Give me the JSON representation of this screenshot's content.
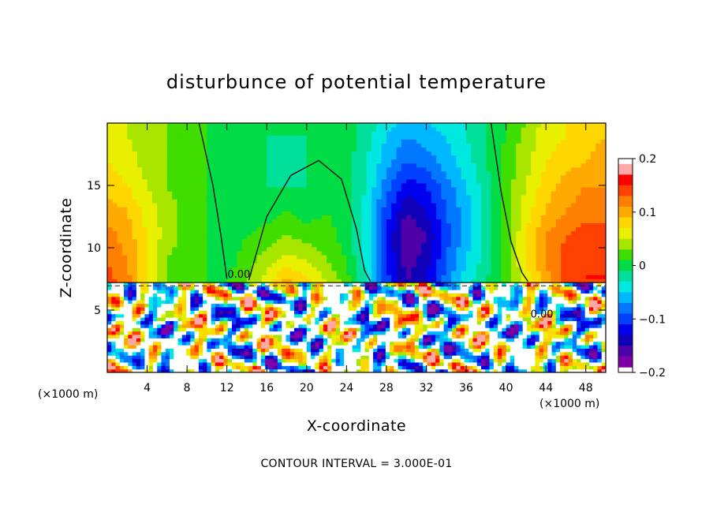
{
  "chart_data": {
    "type": "heatmap",
    "title": "disturbunce of potential temperature",
    "xlabel": "X-coordinate",
    "ylabel": "Z-coordinate",
    "x_unit_left": "(×1000 m)",
    "x_unit_right": "(×1000 m)",
    "xlim": [
      0,
      50
    ],
    "ylim": [
      0,
      20
    ],
    "x_ticks": [
      4,
      8,
      12,
      16,
      20,
      24,
      28,
      32,
      36,
      40,
      44,
      48
    ],
    "x_tick_labels": [
      "4",
      "8",
      "12",
      "16",
      "20",
      "24",
      "28",
      "32",
      "36",
      "40",
      "44",
      "48"
    ],
    "y_ticks": [
      5,
      10,
      15
    ],
    "y_tick_labels": [
      "5",
      "10",
      "15"
    ],
    "colorbar": {
      "range": [
        -0.2,
        0.2
      ],
      "ticks": [
        0.2,
        0.1,
        0,
        -0.1,
        -0.2
      ],
      "tick_labels": [
        "0.2",
        "0.1",
        "0",
        "−0.1",
        "−0.2"
      ],
      "levels": [
        {
          "value": 0.18,
          "color": "#ffa8a8"
        },
        {
          "value": 0.16,
          "color": "#ff0000"
        },
        {
          "value": 0.14,
          "color": "#ff4000"
        },
        {
          "value": 0.12,
          "color": "#ff8000"
        },
        {
          "value": 0.1,
          "color": "#ffaa00"
        },
        {
          "value": 0.08,
          "color": "#ffd700"
        },
        {
          "value": 0.06,
          "color": "#e8f000"
        },
        {
          "value": 0.04,
          "color": "#a8e600"
        },
        {
          "value": 0.02,
          "color": "#40dd00"
        },
        {
          "value": 0.0,
          "color": "#00dc46"
        },
        {
          "value": -0.02,
          "color": "#00e09a"
        },
        {
          "value": -0.04,
          "color": "#00e8e0"
        },
        {
          "value": -0.06,
          "color": "#00b8ff"
        },
        {
          "value": -0.08,
          "color": "#0078ff"
        },
        {
          "value": -0.1,
          "color": "#0040ff"
        },
        {
          "value": -0.12,
          "color": "#0000ee"
        },
        {
          "value": -0.14,
          "color": "#1000b8"
        },
        {
          "value": -0.16,
          "color": "#5000a8"
        },
        {
          "value": -0.18,
          "color": "#8000a8"
        }
      ]
    },
    "contour_labels": [
      "0.00",
      "0.00"
    ],
    "contour_interval_note": "CONTOUR INTERVAL = 3.000E-01",
    "upper_layer_base_z": 7.2,
    "upper_layer_pattern": {
      "columns_x": [
        0,
        2,
        4,
        6,
        8,
        10,
        12,
        14,
        16,
        18,
        20,
        22,
        24,
        26,
        28,
        30,
        32,
        34,
        36,
        38,
        40,
        42,
        44,
        46,
        48,
        50
      ],
      "rows_z": [
        7.2,
        9,
        11,
        13,
        15,
        17,
        19,
        20
      ],
      "values": [
        [
          0.14,
          0.12,
          0.07,
          0.03,
          0.02,
          0.01,
          0.01,
          0.03,
          0.06,
          0.1,
          0.08,
          0.05,
          0.02,
          -0.03,
          -0.1,
          -0.15,
          -0.13,
          -0.08,
          -0.04,
          -0.01,
          0.02,
          0.06,
          0.1,
          0.14,
          0.15,
          0.15
        ],
        [
          0.13,
          0.11,
          0.07,
          0.03,
          0.02,
          0.01,
          0.0,
          0.02,
          0.04,
          0.06,
          0.05,
          0.03,
          0.01,
          -0.04,
          -0.11,
          -0.16,
          -0.14,
          -0.09,
          -0.05,
          -0.02,
          0.02,
          0.07,
          0.11,
          0.14,
          0.15,
          0.15
        ],
        [
          0.12,
          0.1,
          0.07,
          0.04,
          0.02,
          0.01,
          0.0,
          0.01,
          0.02,
          0.03,
          0.02,
          0.02,
          0.0,
          -0.04,
          -0.11,
          -0.17,
          -0.15,
          -0.1,
          -0.06,
          -0.02,
          0.02,
          0.07,
          0.11,
          0.13,
          0.14,
          0.14
        ],
        [
          0.1,
          0.09,
          0.06,
          0.04,
          0.02,
          0.01,
          0.0,
          -0.01,
          0.0,
          0.01,
          0.0,
          0.01,
          0.0,
          -0.04,
          -0.1,
          -0.15,
          -0.13,
          -0.09,
          -0.06,
          -0.02,
          0.02,
          0.06,
          0.09,
          0.11,
          0.12,
          0.12
        ],
        [
          0.08,
          0.07,
          0.05,
          0.03,
          0.02,
          0.01,
          0.0,
          -0.01,
          -0.01,
          -0.01,
          -0.01,
          0.0,
          0.0,
          -0.03,
          -0.08,
          -0.12,
          -0.11,
          -0.08,
          -0.05,
          -0.02,
          0.02,
          0.05,
          0.08,
          0.1,
          0.11,
          0.11
        ],
        [
          0.07,
          0.06,
          0.04,
          0.03,
          0.02,
          0.01,
          0.0,
          -0.01,
          -0.01,
          -0.02,
          -0.01,
          0.0,
          0.0,
          -0.03,
          -0.06,
          -0.09,
          -0.08,
          -0.06,
          -0.04,
          -0.01,
          0.02,
          0.04,
          0.07,
          0.08,
          0.09,
          0.1
        ],
        [
          0.06,
          0.05,
          0.04,
          0.03,
          0.02,
          0.01,
          0.0,
          -0.01,
          -0.01,
          -0.01,
          -0.01,
          0.0,
          0.0,
          -0.02,
          -0.05,
          -0.07,
          -0.06,
          -0.05,
          -0.03,
          -0.01,
          0.01,
          0.04,
          0.06,
          0.07,
          0.08,
          0.09
        ],
        [
          0.06,
          0.05,
          0.04,
          0.03,
          0.02,
          0.01,
          0.0,
          -0.01,
          -0.01,
          -0.01,
          -0.01,
          0.0,
          0.0,
          -0.02,
          -0.04,
          -0.06,
          -0.05,
          -0.04,
          -0.03,
          -0.01,
          0.01,
          0.03,
          0.06,
          0.07,
          0.08,
          0.09
        ]
      ]
    }
  }
}
